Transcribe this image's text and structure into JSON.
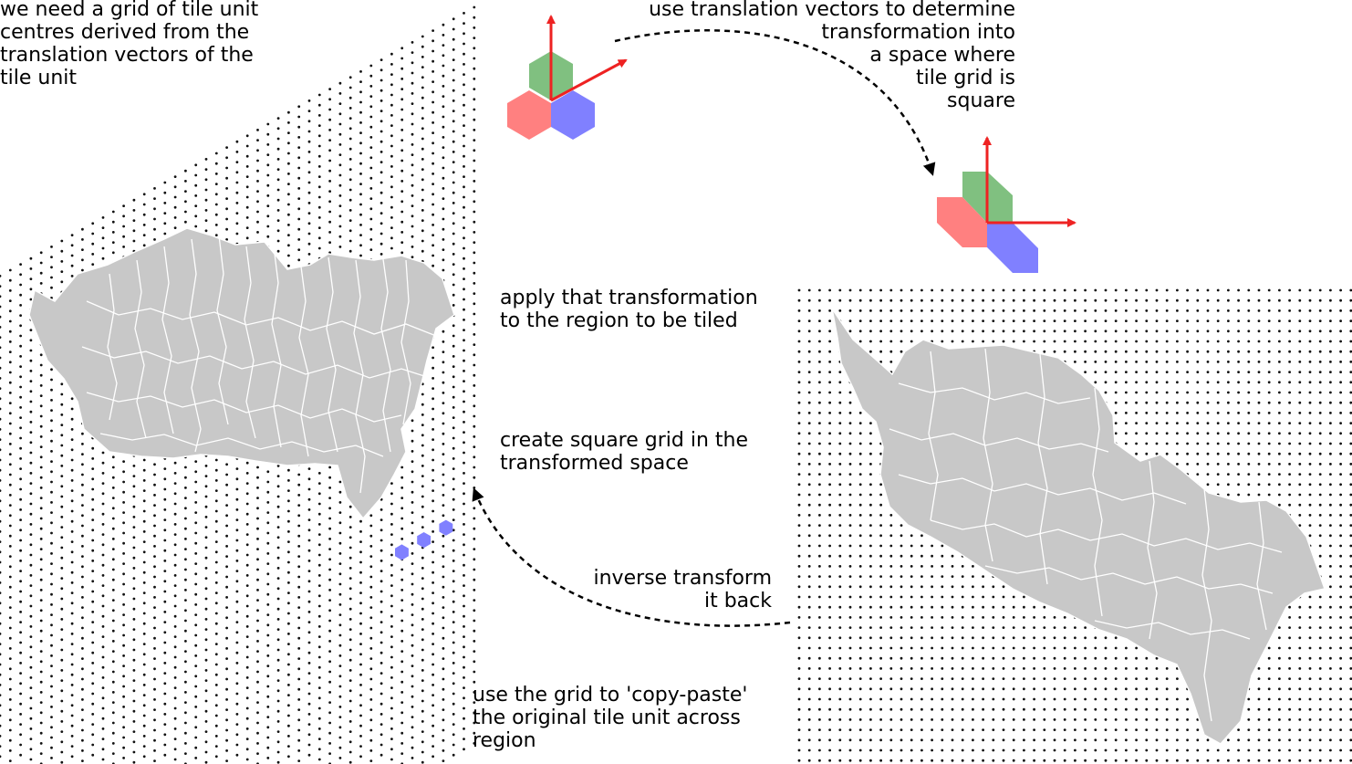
{
  "labels": {
    "grid_centres": "we need a grid of tile unit\ncentres derived from the\ntranslation vectors of the\ntile unit",
    "translation_vectors": "use translation vectors to determine\ntransformation into\na space where\ntile grid is\nsquare",
    "apply_transform": "apply that transformation\nto the region to be tiled",
    "square_grid": "create square grid in the\ntransformed space",
    "inverse_transform": "inverse transform\nit back",
    "copy_paste": "use the grid to 'copy-paste'\nthe original tile unit across\nregion"
  },
  "colors": {
    "tile_red": "#ff8080",
    "tile_green": "#80c080",
    "tile_blue": "#8080ff",
    "vector_arrow": "#ee2222",
    "region_fill": "#c8c8c8",
    "dot": "#111111"
  }
}
